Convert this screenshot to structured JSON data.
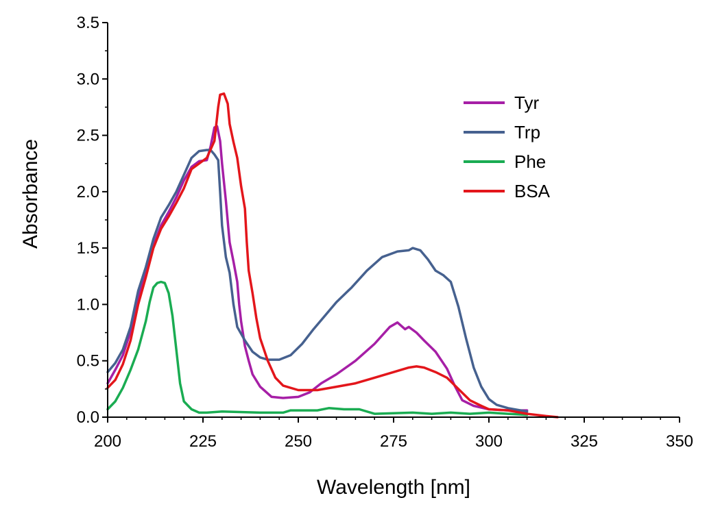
{
  "chart_data": {
    "type": "line",
    "xlabel": "Wavelength [nm]",
    "ylabel": "Absorbance",
    "xlim": [
      200,
      350
    ],
    "ylim": [
      0,
      3.5
    ],
    "xticks": [
      "200",
      "225",
      "250",
      "275",
      "300",
      "325",
      "350"
    ],
    "yticks": [
      "0.0",
      "0.5",
      "1.0",
      "1.5",
      "2.0",
      "2.5",
      "3.0",
      "3.5"
    ],
    "grid": false,
    "legend": "top-right",
    "series": [
      {
        "name": "Tyr",
        "color": "#a61fa6",
        "points": [
          [
            200,
            0.3
          ],
          [
            202,
            0.42
          ],
          [
            204,
            0.55
          ],
          [
            206,
            0.76
          ],
          [
            208,
            1.05
          ],
          [
            210,
            1.3
          ],
          [
            212,
            1.52
          ],
          [
            214,
            1.7
          ],
          [
            216,
            1.82
          ],
          [
            218,
            1.95
          ],
          [
            220,
            2.1
          ],
          [
            222,
            2.22
          ],
          [
            224,
            2.27
          ],
          [
            226,
            2.28
          ],
          [
            227,
            2.4
          ],
          [
            228,
            2.57
          ],
          [
            228.7,
            2.58
          ],
          [
            229.5,
            2.45
          ],
          [
            230,
            2.25
          ],
          [
            231,
            1.92
          ],
          [
            232,
            1.55
          ],
          [
            233,
            1.38
          ],
          [
            234,
            1.2
          ],
          [
            234.5,
            1.0
          ],
          [
            235,
            0.85
          ],
          [
            236,
            0.63
          ],
          [
            237,
            0.5
          ],
          [
            238,
            0.38
          ],
          [
            240,
            0.27
          ],
          [
            243,
            0.18
          ],
          [
            246,
            0.17
          ],
          [
            250,
            0.18
          ],
          [
            253,
            0.22
          ],
          [
            256,
            0.3
          ],
          [
            260,
            0.38
          ],
          [
            265,
            0.5
          ],
          [
            270,
            0.65
          ],
          [
            274,
            0.8
          ],
          [
            276,
            0.84
          ],
          [
            278,
            0.78
          ],
          [
            279,
            0.8
          ],
          [
            281,
            0.75
          ],
          [
            283,
            0.68
          ],
          [
            286,
            0.58
          ],
          [
            289,
            0.43
          ],
          [
            291,
            0.28
          ],
          [
            293,
            0.15
          ],
          [
            296,
            0.1
          ],
          [
            300,
            0.07
          ],
          [
            305,
            0.06
          ],
          [
            310,
            0.06
          ]
        ]
      },
      {
        "name": "Trp",
        "color": "#46618f",
        "points": [
          [
            200,
            0.4
          ],
          [
            202,
            0.48
          ],
          [
            204,
            0.6
          ],
          [
            206,
            0.8
          ],
          [
            208,
            1.12
          ],
          [
            210,
            1.33
          ],
          [
            212,
            1.58
          ],
          [
            214,
            1.77
          ],
          [
            216,
            1.88
          ],
          [
            218,
            2.0
          ],
          [
            220,
            2.15
          ],
          [
            222,
            2.3
          ],
          [
            224,
            2.36
          ],
          [
            226,
            2.37
          ],
          [
            227,
            2.37
          ],
          [
            228,
            2.33
          ],
          [
            229,
            2.28
          ],
          [
            229.5,
            2.0
          ],
          [
            230,
            1.7
          ],
          [
            231,
            1.42
          ],
          [
            232,
            1.28
          ],
          [
            233,
            1.0
          ],
          [
            234,
            0.8
          ],
          [
            236,
            0.68
          ],
          [
            238,
            0.58
          ],
          [
            240,
            0.53
          ],
          [
            242,
            0.51
          ],
          [
            245,
            0.51
          ],
          [
            248,
            0.55
          ],
          [
            251,
            0.65
          ],
          [
            254,
            0.78
          ],
          [
            257,
            0.9
          ],
          [
            260,
            1.02
          ],
          [
            264,
            1.15
          ],
          [
            268,
            1.3
          ],
          [
            272,
            1.42
          ],
          [
            276,
            1.47
          ],
          [
            279,
            1.48
          ],
          [
            280,
            1.5
          ],
          [
            282,
            1.48
          ],
          [
            284,
            1.4
          ],
          [
            286,
            1.3
          ],
          [
            288,
            1.26
          ],
          [
            290,
            1.2
          ],
          [
            292,
            0.98
          ],
          [
            294,
            0.7
          ],
          [
            296,
            0.44
          ],
          [
            298,
            0.27
          ],
          [
            300,
            0.16
          ],
          [
            302,
            0.11
          ],
          [
            305,
            0.08
          ],
          [
            310,
            0.05
          ]
        ]
      },
      {
        "name": "Phe",
        "color": "#1aac52",
        "points": [
          [
            200,
            0.07
          ],
          [
            202,
            0.14
          ],
          [
            204,
            0.26
          ],
          [
            206,
            0.42
          ],
          [
            208,
            0.6
          ],
          [
            210,
            0.85
          ],
          [
            211,
            1.02
          ],
          [
            212,
            1.15
          ],
          [
            213,
            1.19
          ],
          [
            214,
            1.2
          ],
          [
            215,
            1.19
          ],
          [
            216,
            1.1
          ],
          [
            217,
            0.9
          ],
          [
            218,
            0.6
          ],
          [
            219,
            0.3
          ],
          [
            220,
            0.14
          ],
          [
            222,
            0.07
          ],
          [
            224,
            0.04
          ],
          [
            226,
            0.04
          ],
          [
            230,
            0.05
          ],
          [
            240,
            0.04
          ],
          [
            246,
            0.04
          ],
          [
            248,
            0.06
          ],
          [
            255,
            0.06
          ],
          [
            258,
            0.08
          ],
          [
            262,
            0.07
          ],
          [
            266,
            0.07
          ],
          [
            270,
            0.03
          ],
          [
            280,
            0.04
          ],
          [
            285,
            0.03
          ],
          [
            290,
            0.04
          ],
          [
            295,
            0.03
          ],
          [
            300,
            0.04
          ],
          [
            305,
            0.03
          ],
          [
            310,
            0.02
          ]
        ]
      },
      {
        "name": "BSA",
        "color": "#e3161b",
        "points": [
          [
            200,
            0.26
          ],
          [
            202,
            0.33
          ],
          [
            204,
            0.47
          ],
          [
            206,
            0.68
          ],
          [
            208,
            1.0
          ],
          [
            210,
            1.24
          ],
          [
            212,
            1.5
          ],
          [
            214,
            1.67
          ],
          [
            216,
            1.78
          ],
          [
            218,
            1.9
          ],
          [
            220,
            2.03
          ],
          [
            222,
            2.2
          ],
          [
            224,
            2.25
          ],
          [
            226,
            2.3
          ],
          [
            228,
            2.45
          ],
          [
            229,
            2.75
          ],
          [
            229.5,
            2.86
          ],
          [
            230.5,
            2.87
          ],
          [
            231.5,
            2.78
          ],
          [
            232,
            2.6
          ],
          [
            233,
            2.44
          ],
          [
            234,
            2.3
          ],
          [
            235,
            2.05
          ],
          [
            236,
            1.85
          ],
          [
            236.5,
            1.55
          ],
          [
            237,
            1.3
          ],
          [
            238,
            1.1
          ],
          [
            239,
            0.88
          ],
          [
            240,
            0.7
          ],
          [
            242,
            0.5
          ],
          [
            244,
            0.35
          ],
          [
            246,
            0.28
          ],
          [
            250,
            0.24
          ],
          [
            255,
            0.24
          ],
          [
            260,
            0.27
          ],
          [
            265,
            0.3
          ],
          [
            270,
            0.35
          ],
          [
            275,
            0.4
          ],
          [
            279,
            0.44
          ],
          [
            281,
            0.45
          ],
          [
            283,
            0.44
          ],
          [
            286,
            0.4
          ],
          [
            289,
            0.35
          ],
          [
            292,
            0.25
          ],
          [
            295,
            0.15
          ],
          [
            298,
            0.1
          ],
          [
            300,
            0.07
          ],
          [
            305,
            0.06
          ],
          [
            310,
            0.03
          ],
          [
            315,
            0.01
          ],
          [
            318,
            0.0
          ]
        ]
      }
    ]
  }
}
